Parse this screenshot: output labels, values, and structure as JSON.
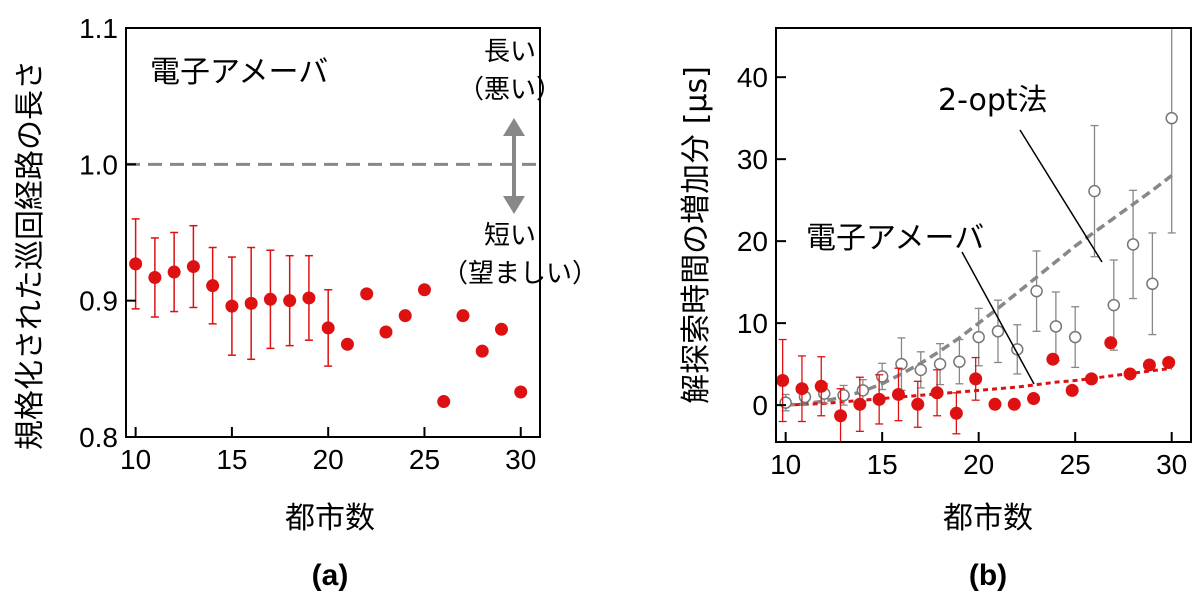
{
  "chart_data": [
    {
      "type": "scatter",
      "panel_label": "(a)",
      "xlabel": "都市数",
      "ylabel": "規格化された巡回経路の長さ",
      "xlim": [
        9.5,
        31
      ],
      "ylim": [
        0.8,
        1.1
      ],
      "xticks": [
        10,
        15,
        20,
        25,
        30
      ],
      "yticks": [
        "0.8",
        "0.9",
        "1.0",
        "1.1"
      ],
      "reference_line": 1.0,
      "annotations": {
        "method": "電子アメーバ",
        "up_line1": "長い",
        "up_line2": "（悪い）",
        "down_line1": "短い",
        "down_line2": "（望ましい）"
      },
      "series": [
        {
          "name": "電子アメーバ",
          "color": "#dd1111",
          "x": [
            10,
            11,
            12,
            13,
            14,
            15,
            16,
            17,
            18,
            19,
            20,
            21,
            22,
            23,
            24,
            25,
            26,
            27,
            28,
            29,
            30
          ],
          "y": [
            0.927,
            0.917,
            0.921,
            0.925,
            0.911,
            0.896,
            0.898,
            0.901,
            0.9,
            0.902,
            0.88,
            0.868,
            0.905,
            0.877,
            0.889,
            0.908,
            0.826,
            0.889,
            0.863,
            0.879,
            0.833
          ],
          "err": [
            0.033,
            0.029,
            0.029,
            0.03,
            0.028,
            0.036,
            0.041,
            0.036,
            0.033,
            0.031,
            0.028,
            0,
            0,
            0,
            0,
            0,
            0,
            0,
            0,
            0,
            0
          ]
        }
      ]
    },
    {
      "type": "scatter",
      "panel_label": "(b)",
      "xlabel": "都市数",
      "ylabel": "解探索時間の増加分 [μs]",
      "xlim": [
        9.5,
        31
      ],
      "ylim": [
        -4.5,
        46
      ],
      "xticks": [
        10,
        15,
        20,
        25,
        30
      ],
      "yticks": [
        0,
        10,
        20,
        30,
        40
      ],
      "series": [
        {
          "name": "2-opt法",
          "color": "#888888",
          "marker": "open-circle",
          "x": [
            10,
            11,
            12,
            13,
            14,
            15,
            16,
            17,
            18,
            19,
            20,
            21,
            22,
            23,
            24,
            25,
            26,
            27,
            28,
            29,
            30
          ],
          "y": [
            0.3,
            1.0,
            1.4,
            1.2,
            1.8,
            3.5,
            5.0,
            4.3,
            5.0,
            5.3,
            8.3,
            9.0,
            6.8,
            13.9,
            9.6,
            8.3,
            26.1,
            12.2,
            19.6,
            14.8,
            35.0
          ],
          "err": [
            1.0,
            1.0,
            1.2,
            1.2,
            1.3,
            1.6,
            3.2,
            2.2,
            2.5,
            2.7,
            3.5,
            3.8,
            3.0,
            4.9,
            4.2,
            3.7,
            8.0,
            5.5,
            6.6,
            6.2,
            14.0
          ],
          "fit": [
            0.0,
            0.15,
            0.5,
            1.0,
            1.7,
            2.6,
            3.8,
            5.1,
            6.6,
            8.2,
            10.0,
            11.8,
            13.7,
            15.6,
            17.5,
            19.4,
            21.1,
            22.8,
            24.5,
            26.2,
            28.0
          ]
        },
        {
          "name": "電子アメーバ",
          "color": "#dd1111",
          "marker": "filled-circle",
          "x": [
            10,
            11,
            12,
            13,
            14,
            15,
            16,
            17,
            18,
            19,
            20,
            21,
            22,
            23,
            24,
            25,
            26,
            27,
            28,
            29,
            30
          ],
          "y": [
            3.0,
            2.0,
            2.3,
            -1.3,
            0.1,
            0.7,
            1.3,
            0.1,
            1.5,
            -1.0,
            3.2,
            0.1,
            0.1,
            0.8,
            5.6,
            1.8,
            3.2,
            7.6,
            3.8,
            4.9,
            5.2
          ],
          "err": [
            5.0,
            4.0,
            3.6,
            3.3,
            3.3,
            3.0,
            3.2,
            2.8,
            2.8,
            2.5,
            2.6,
            0,
            0,
            0,
            0,
            0,
            0,
            0,
            0,
            0,
            0
          ],
          "fit": [
            0.0,
            0.1,
            0.2,
            0.4,
            0.6,
            0.8,
            1.0,
            1.2,
            1.4,
            1.6,
            1.8,
            2.0,
            2.2,
            2.5,
            2.8,
            3.0,
            3.3,
            3.6,
            3.9,
            4.2,
            4.5
          ]
        }
      ]
    }
  ]
}
